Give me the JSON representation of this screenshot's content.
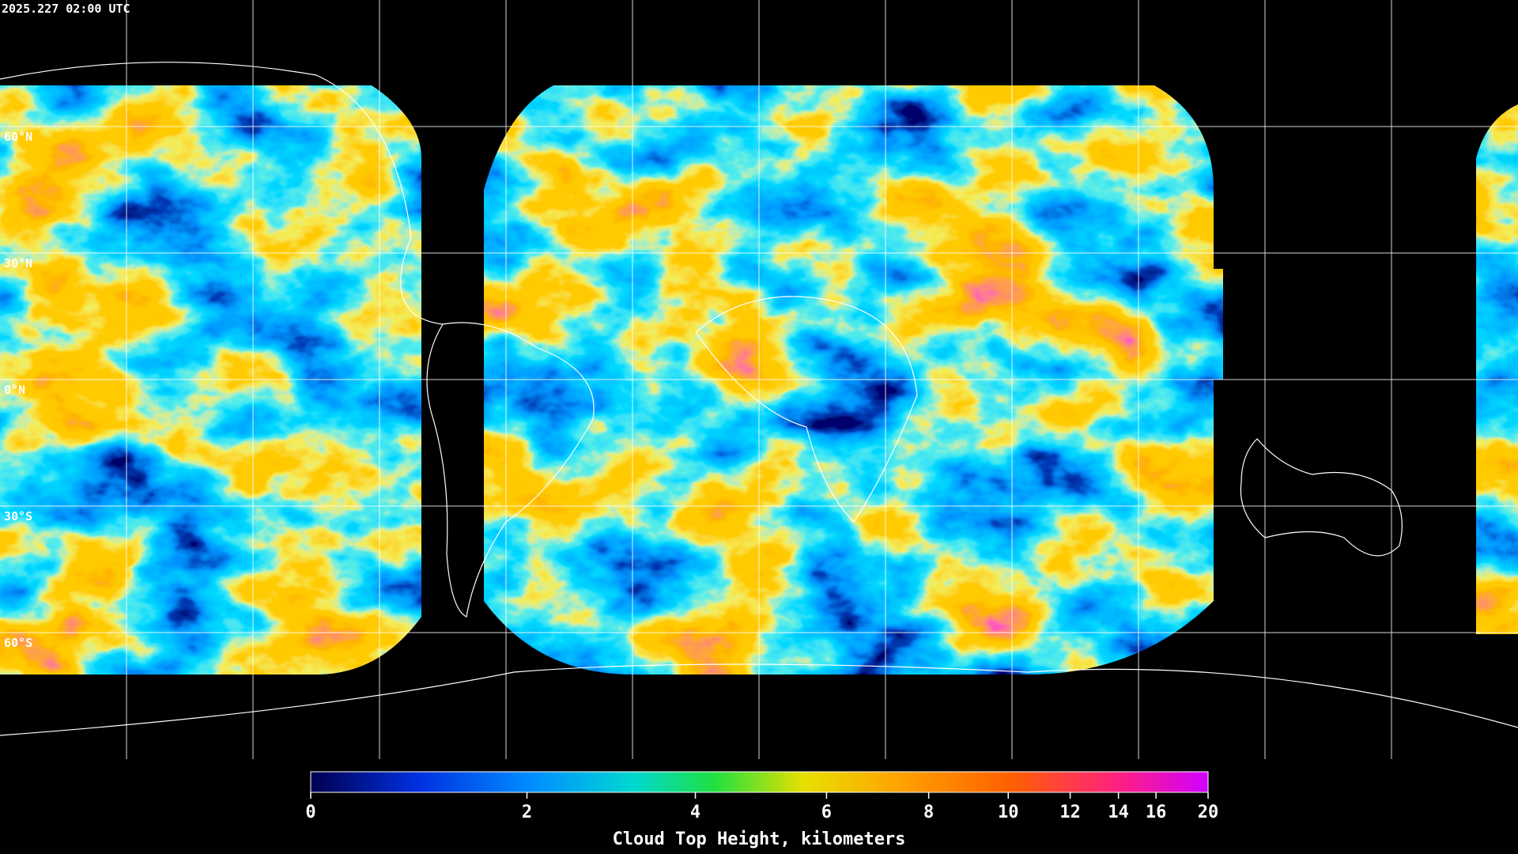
{
  "header": {
    "timestamp": "2025.227 02:00 UTC"
  },
  "map": {
    "lat_labels": [
      "60°N",
      "30°N",
      "0°N",
      "30°S",
      "60°S"
    ]
  },
  "colorbar": {
    "title": "Cloud Top Height, kilometers",
    "range": [
      0,
      20
    ],
    "ticks": [
      0,
      2,
      4,
      6,
      8,
      10,
      12,
      14,
      16,
      20
    ]
  }
}
